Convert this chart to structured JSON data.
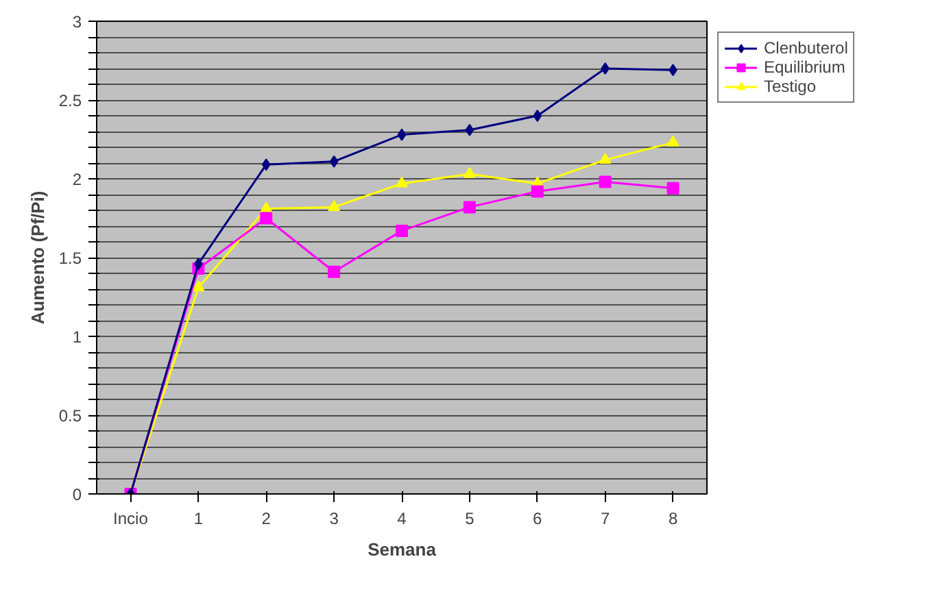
{
  "chart_data": {
    "type": "line",
    "xlabel": "Semana",
    "ylabel": "Aumento (Pf/Pi)",
    "categories": [
      "Incio",
      "1",
      "2",
      "3",
      "4",
      "5",
      "6",
      "7",
      "8"
    ],
    "series": [
      {
        "name": "Clenbuterol",
        "color": "#000080",
        "marker": "diamond",
        "values": [
          0,
          1.46,
          2.09,
          2.11,
          2.28,
          2.31,
          2.4,
          2.7,
          2.69
        ]
      },
      {
        "name": "Equilibrium",
        "color": "#ff00ff",
        "marker": "square",
        "values": [
          0,
          1.43,
          1.75,
          1.41,
          1.67,
          1.82,
          1.92,
          1.98,
          1.94
        ]
      },
      {
        "name": "Testigo",
        "color": "#ffff00",
        "marker": "triangle",
        "values": [
          0,
          1.31,
          1.81,
          1.82,
          1.97,
          2.03,
          1.97,
          2.12,
          2.23
        ]
      }
    ],
    "ylim": [
      0,
      3
    ],
    "yticks": [
      0,
      {
        "value": 0.1,
        "label": null
      },
      {
        "value": 0.2,
        "label": null
      },
      {
        "value": 0.3,
        "label": null
      },
      {
        "value": 0.4,
        "label": null
      },
      0.5,
      {
        "value": 0.6,
        "label": null
      },
      {
        "value": 0.7,
        "label": null
      },
      {
        "value": 0.8,
        "label": null
      },
      {
        "value": 0.9,
        "label": null
      },
      1,
      {
        "value": 1.1,
        "label": null
      },
      {
        "value": 1.2,
        "label": null
      },
      {
        "value": 1.3,
        "label": null
      },
      {
        "value": 1.4,
        "label": null
      },
      1.5,
      {
        "value": 1.6,
        "label": null
      },
      {
        "value": 1.7,
        "label": null
      },
      {
        "value": 1.8,
        "label": null
      },
      {
        "value": 1.9,
        "label": null
      },
      2,
      {
        "value": 2.1,
        "label": null
      },
      {
        "value": 2.2,
        "label": null
      },
      {
        "value": 2.3,
        "label": null
      },
      {
        "value": 2.4,
        "label": null
      },
      2.5,
      {
        "value": 2.6,
        "label": null
      },
      {
        "value": 2.7,
        "label": null
      },
      {
        "value": 2.8,
        "label": null
      },
      {
        "value": 2.9,
        "label": null
      },
      3
    ],
    "grid": "y",
    "legend": "top right"
  }
}
